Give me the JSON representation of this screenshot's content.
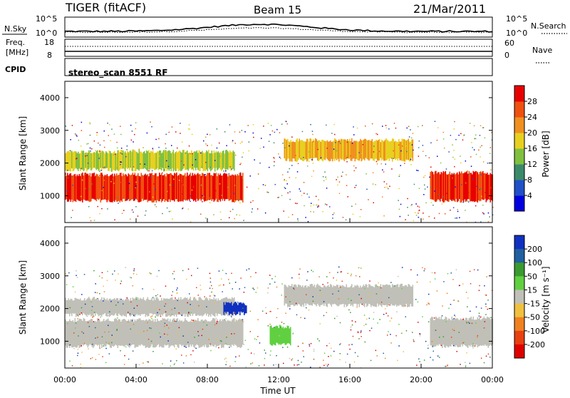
{
  "header": {
    "title": "TIGER (fitACF)",
    "beam": "Beam 15",
    "date": "21/Mar/2011"
  },
  "top_panel": {
    "left_label": "N.Sky",
    "right_label": "N.Search",
    "y_ticks_left": [
      "10^5",
      "10^0"
    ],
    "y_ticks_right": [
      "10^5",
      "10^0"
    ]
  },
  "freq_panel": {
    "left_label_1": "Freq.",
    "left_label_2": "[MHz]",
    "right_label": "Nave",
    "y_ticks_left": [
      "18",
      "8"
    ],
    "y_ticks_right": [
      "60",
      "0"
    ]
  },
  "cpid": {
    "label": "CPID",
    "value": "stereo_scan 8551 RF"
  },
  "chart_data": [
    {
      "type": "heatmap",
      "quantity": "Power",
      "ylabel": "Slant Range [km]",
      "xlabel": "Time UT",
      "ylim": [
        180,
        4500
      ],
      "y_ticks": [
        "1000",
        "2000",
        "3000",
        "4000"
      ],
      "colorbar": {
        "label": "Power [dB]",
        "ticks": [
          "4",
          "8",
          "12",
          "16",
          "20",
          "24",
          "28"
        ],
        "colors": [
          "#0000e0",
          "#2050c8",
          "#3a8a6a",
          "#80c040",
          "#e8d020",
          "#f09020",
          "#f05010",
          "#e80000"
        ]
      },
      "bands": [
        {
          "name": "lower-red-band",
          "start_h": 0,
          "end_h": 10,
          "range_low": 850,
          "range_high": 1650,
          "color": "#ee2200"
        },
        {
          "name": "upper-green-band",
          "start_h": 0,
          "end_h": 9.5,
          "range_low": 1800,
          "range_high": 2350,
          "color": "#6ab04a"
        },
        {
          "name": "afternoon-band",
          "start_h": 12.3,
          "end_h": 19.5,
          "range_low": 2100,
          "range_high": 2700,
          "color": "#e8a030"
        },
        {
          "name": "evening-red-band",
          "start_h": 20.5,
          "end_h": 24,
          "range_low": 850,
          "range_high": 1700,
          "color": "#ee2200"
        }
      ]
    },
    {
      "type": "heatmap",
      "quantity": "Velocity",
      "ylabel": "Slant Range [km]",
      "xlabel": "Time UT",
      "ylim": [
        180,
        4500
      ],
      "y_ticks": [
        "1000",
        "2000",
        "3000",
        "4000"
      ],
      "x_ticks": [
        "00:00",
        "04:00",
        "08:00",
        "12:00",
        "16:00",
        "20:00",
        "00:00"
      ],
      "colorbar": {
        "label": "Velocity [m s⁻¹]",
        "ticks": [
          "200",
          "100",
          "50",
          "15",
          "-15",
          "-50",
          "-100",
          "-200"
        ],
        "colors": [
          "#1030c0",
          "#2060a0",
          "#3a9a30",
          "#60d040",
          "#c0c0b8",
          "#f0c040",
          "#f08020",
          "#e84010",
          "#e00000"
        ]
      }
    }
  ]
}
